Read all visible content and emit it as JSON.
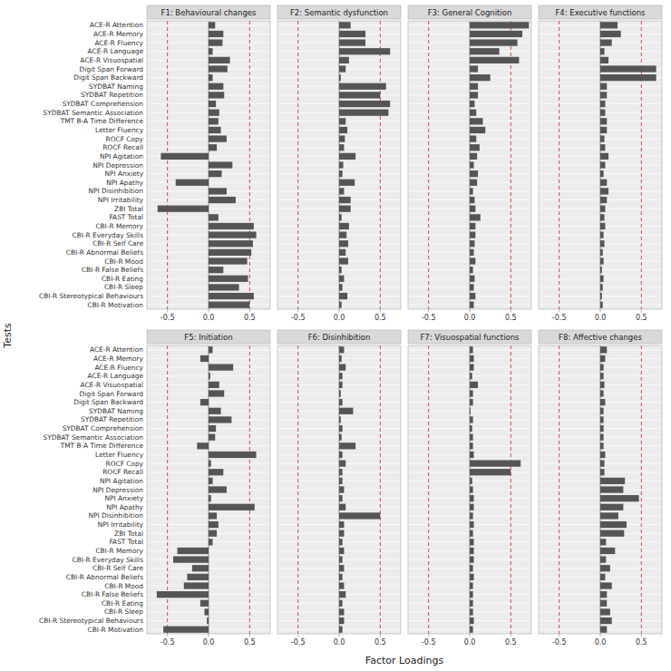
{
  "xlabel": "Factor Loadings",
  "ylabel": "Tests",
  "chart_data": [
    {
      "type": "bar",
      "orientation": "horizontal",
      "title": "F1: Behavioural changes",
      "color": "#555555",
      "grid": true,
      "categories": [
        "ACE-R Attention",
        "ACE-R Memory",
        "ACE-R Fluency",
        "ACE-R Language",
        "ACE-R Visuospatial",
        "Digit Span Forward",
        "Digit Span Backward",
        "SYDBAT Naming",
        "SYDBAT Repetition",
        "SYDBAT Comprehension",
        "SYDBAT Semantic Association",
        "TMT B-A Time Difference",
        "Letter Fluency",
        "ROCF Copy",
        "ROCF Recall",
        "NPI Agitation",
        "NPI Depression",
        "NPI Anxiety",
        "NPI Apathy",
        "NPI Disinhibition",
        "NPI Irritability",
        "ZBI Total",
        "FAST Total",
        "CBI-R Memory",
        "CBI-R Everyday Skills",
        "CBI-R Self Care",
        "CBI-R Abnormal Beliefs",
        "CBI-R Mood",
        "CBI-R False Beliefs",
        "CBI-R Eating",
        "CBI-R Sleep",
        "CBI-R Stereotypical Behaviours",
        "CBI-R Motivation"
      ],
      "values": [
        0.08,
        0.18,
        0.17,
        0.05,
        0.26,
        0.23,
        0.05,
        0.18,
        0.19,
        0.09,
        0.13,
        0.12,
        0.15,
        0.22,
        0.1,
        -0.58,
        0.29,
        0.16,
        -0.4,
        0.22,
        0.33,
        -0.62,
        0.12,
        0.55,
        0.58,
        0.54,
        0.52,
        0.47,
        0.18,
        0.48,
        0.37,
        0.55,
        0.5
      ],
      "xlim": [
        -0.75,
        0.75
      ],
      "xticks": [
        -0.5,
        {
          "value": 0.0,
          "label": "0.0"
        },
        0.5
      ],
      "reference_lines": [
        -0.5,
        0.5
      ]
    },
    {
      "type": "bar",
      "orientation": "horizontal",
      "title": "F2: Semantic dysfunction",
      "color": "#555555",
      "grid": true,
      "tick_labels": "x",
      "categories": [
        "ACE-R Attention",
        "ACE-R Memory",
        "ACE-R Fluency",
        "ACE-R Language",
        "ACE-R Visuospatial",
        "Digit Span Forward",
        "Digit Span Backward",
        "SYDBAT Naming",
        "SYDBAT Repetition",
        "SYDBAT Comprehension",
        "SYDBAT Semantic Association",
        "TMT B-A Time Difference",
        "Letter Fluency",
        "ROCF Copy",
        "ROCF Recall",
        "NPI Agitation",
        "NPI Depression",
        "NPI Anxiety",
        "NPI Apathy",
        "NPI Disinhibition",
        "NPI Irritability",
        "ZBI Total",
        "FAST Total",
        "CBI-R Memory",
        "CBI-R Everyday Skills",
        "CBI-R Self Care",
        "CBI-R Abnormal Beliefs",
        "CBI-R Mood",
        "CBI-R False Beliefs",
        "CBI-R Eating",
        "CBI-R Sleep",
        "CBI-R Stereotypical Behaviours",
        "CBI-R Motivation"
      ],
      "values": [
        0.14,
        0.32,
        0.32,
        0.62,
        0.12,
        0.08,
        0.02,
        0.57,
        0.5,
        0.62,
        0.6,
        0.08,
        0.1,
        0.07,
        0.06,
        0.2,
        0.05,
        0.04,
        0.19,
        0.06,
        0.14,
        0.14,
        0.03,
        0.12,
        0.09,
        0.11,
        0.08,
        0.11,
        0.03,
        0.06,
        0.04,
        0.1,
        0.03
      ],
      "xlim": [
        -0.75,
        0.75
      ],
      "xticks": [
        -0.5,
        {
          "value": 0.0,
          "label": "0.0"
        },
        0.5
      ],
      "reference_lines": [
        -0.5,
        0.5
      ]
    },
    {
      "type": "bar",
      "orientation": "horizontal",
      "title": "F3: General Cognition",
      "color": "#555555",
      "grid": true,
      "tick_labels": "x",
      "categories": [
        "ACE-R Attention",
        "ACE-R Memory",
        "ACE-R Fluency",
        "ACE-R Language",
        "ACE-R Visuospatial",
        "Digit Span Forward",
        "Digit Span Backward",
        "SYDBAT Naming",
        "SYDBAT Repetition",
        "SYDBAT Comprehension",
        "SYDBAT Semantic Association",
        "TMT B-A Time Difference",
        "Letter Fluency",
        "ROCF Copy",
        "ROCF Recall",
        "NPI Agitation",
        "NPI Depression",
        "NPI Anxiety",
        "NPI Apathy",
        "NPI Disinhibition",
        "NPI Irritability",
        "ZBI Total",
        "FAST Total",
        "CBI-R Memory",
        "CBI-R Everyday Skills",
        "CBI-R Self Care",
        "CBI-R Abnormal Beliefs",
        "CBI-R Mood",
        "CBI-R False Beliefs",
        "CBI-R Eating",
        "CBI-R Sleep",
        "CBI-R Stereotypical Behaviours",
        "CBI-R Motivation"
      ],
      "values": [
        0.72,
        0.64,
        0.58,
        0.36,
        0.6,
        0.1,
        0.25,
        0.1,
        0.1,
        0.06,
        0.08,
        0.16,
        0.19,
        0.08,
        0.12,
        0.09,
        0.05,
        0.1,
        0.09,
        0.04,
        0.06,
        0.07,
        0.13,
        0.07,
        0.07,
        0.06,
        0.05,
        0.07,
        0.04,
        0.06,
        0.05,
        0.07,
        0.05
      ],
      "xlim": [
        -0.75,
        0.75
      ],
      "xticks": [
        -0.5,
        {
          "value": 0.0,
          "label": "0.0"
        },
        0.5
      ],
      "reference_lines": [
        -0.5,
        0.5
      ]
    },
    {
      "type": "bar",
      "orientation": "horizontal",
      "title": "F4: Executive functions",
      "color": "#555555",
      "grid": true,
      "tick_labels": "x",
      "categories": [
        "ACE-R Attention",
        "ACE-R Memory",
        "ACE-R Fluency",
        "ACE-R Language",
        "ACE-R Visuospatial",
        "Digit Span Forward",
        "Digit Span Backward",
        "SYDBAT Naming",
        "SYDBAT Repetition",
        "SYDBAT Comprehension",
        "SYDBAT Semantic Association",
        "TMT B-A Time Difference",
        "Letter Fluency",
        "ROCF Copy",
        "ROCF Recall",
        "NPI Agitation",
        "NPI Depression",
        "NPI Anxiety",
        "NPI Apathy",
        "NPI Disinhibition",
        "NPI Irritability",
        "ZBI Total",
        "FAST Total",
        "CBI-R Memory",
        "CBI-R Everyday Skills",
        "CBI-R Self Care",
        "CBI-R Abnormal Beliefs",
        "CBI-R Mood",
        "CBI-R False Beliefs",
        "CBI-R Eating",
        "CBI-R Sleep",
        "CBI-R Stereotypical Behaviours",
        "CBI-R Motivation"
      ],
      "values": [
        0.21,
        0.25,
        0.14,
        0.05,
        0.1,
        0.68,
        0.68,
        0.08,
        0.08,
        0.06,
        0.06,
        0.08,
        0.08,
        0.05,
        0.06,
        0.1,
        0.06,
        0.04,
        0.08,
        0.1,
        0.08,
        0.06,
        0.05,
        0.06,
        0.04,
        0.05,
        0.03,
        0.04,
        0.02,
        0.04,
        0.03,
        0.02,
        0.03
      ],
      "xlim": [
        -0.75,
        0.75
      ],
      "xticks": [
        -0.5,
        {
          "value": 0.0,
          "label": "0.0"
        },
        0.5
      ],
      "reference_lines": [
        -0.5,
        0.5
      ]
    },
    {
      "type": "bar",
      "orientation": "horizontal",
      "title": "F5: Initiation",
      "color": "#555555",
      "grid": true,
      "categories": [
        "ACE-R Attention",
        "ACE-R Memory",
        "ACE-R Fluency",
        "ACE-R Language",
        "ACE-R Visuospatial",
        "Digit Span Forward",
        "Digit Span Backward",
        "SYDBAT Naming",
        "SYDBAT Repetition",
        "SYDBAT Comprehension",
        "SYDBAT Semantic Association",
        "TMT B-A Time Difference",
        "Letter Fluency",
        "ROCF Copy",
        "ROCF Recall",
        "NPI Agitation",
        "NPI Depression",
        "NPI Anxiety",
        "NPI Apathy",
        "NPI Disinhibition",
        "NPI Irritability",
        "ZBI Total",
        "FAST Total",
        "CBI-R Memory",
        "CBI-R Everyday Skills",
        "CBI-R Self Care",
        "CBI-R Abnormal Beliefs",
        "CBI-R Mood",
        "CBI-R False Beliefs",
        "CBI-R Eating",
        "CBI-R Sleep",
        "CBI-R Stereotypical Behaviours",
        "CBI-R Motivation"
      ],
      "values": [
        0.05,
        -0.1,
        0.3,
        0.02,
        0.13,
        0.19,
        -0.1,
        0.15,
        0.28,
        0.09,
        0.08,
        -0.14,
        0.58,
        0.03,
        0.18,
        0.05,
        0.22,
        0.03,
        0.56,
        0.1,
        0.12,
        0.1,
        0.05,
        -0.38,
        -0.43,
        -0.2,
        -0.26,
        -0.3,
        -0.63,
        -0.1,
        -0.05,
        -0.02,
        -0.55
      ],
      "xlim": [
        -0.75,
        0.75
      ],
      "xticks": [
        -0.5,
        {
          "value": 0.0,
          "label": "0.0"
        },
        0.5
      ],
      "reference_lines": [
        -0.5,
        0.5
      ]
    },
    {
      "type": "bar",
      "orientation": "horizontal",
      "title": "F6: Disinhibition",
      "color": "#555555",
      "grid": true,
      "tick_labels": "x",
      "categories": [
        "ACE-R Attention",
        "ACE-R Memory",
        "ACE-R Fluency",
        "ACE-R Language",
        "ACE-R Visuospatial",
        "Digit Span Forward",
        "Digit Span Backward",
        "SYDBAT Naming",
        "SYDBAT Repetition",
        "SYDBAT Comprehension",
        "SYDBAT Semantic Association",
        "TMT B-A Time Difference",
        "Letter Fluency",
        "ROCF Copy",
        "ROCF Recall",
        "NPI Agitation",
        "NPI Depression",
        "NPI Anxiety",
        "NPI Apathy",
        "NPI Disinhibition",
        "NPI Irritability",
        "ZBI Total",
        "FAST Total",
        "CBI-R Memory",
        "CBI-R Everyday Skills",
        "CBI-R Self Care",
        "CBI-R Abnormal Beliefs",
        "CBI-R Mood",
        "CBI-R False Beliefs",
        "CBI-R Eating",
        "CBI-R Sleep",
        "CBI-R Stereotypical Behaviours",
        "CBI-R Motivation"
      ],
      "values": [
        0.06,
        0.03,
        0.08,
        0.04,
        0.04,
        0.02,
        0.04,
        0.17,
        0.02,
        0.04,
        0.03,
        0.2,
        0.04,
        0.08,
        0.04,
        0.04,
        0.06,
        0.04,
        0.08,
        0.5,
        0.06,
        0.06,
        0.04,
        0.06,
        0.04,
        0.06,
        0.04,
        0.06,
        0.08,
        0.04,
        0.06,
        0.06,
        0.04
      ],
      "xlim": [
        -0.75,
        0.75
      ],
      "xticks": [
        -0.5,
        {
          "value": 0.0,
          "label": "0.0"
        },
        0.5
      ],
      "reference_lines": [
        -0.5,
        0.5
      ]
    },
    {
      "type": "bar",
      "orientation": "horizontal",
      "title": "F7: Visuospatial functions",
      "color": "#555555",
      "grid": true,
      "tick_labels": "x",
      "categories": [
        "ACE-R Attention",
        "ACE-R Memory",
        "ACE-R Fluency",
        "ACE-R Language",
        "ACE-R Visuospatial",
        "Digit Span Forward",
        "Digit Span Backward",
        "SYDBAT Naming",
        "SYDBAT Repetition",
        "SYDBAT Comprehension",
        "SYDBAT Semantic Association",
        "TMT B-A Time Difference",
        "Letter Fluency",
        "ROCF Copy",
        "ROCF Recall",
        "NPI Agitation",
        "NPI Depression",
        "NPI Anxiety",
        "NPI Apathy",
        "NPI Disinhibition",
        "NPI Irritability",
        "ZBI Total",
        "FAST Total",
        "CBI-R Memory",
        "CBI-R Everyday Skills",
        "CBI-R Self Care",
        "CBI-R Abnormal Beliefs",
        "CBI-R Mood",
        "CBI-R False Beliefs",
        "CBI-R Eating",
        "CBI-R Sleep",
        "CBI-R Stereotypical Behaviours",
        "CBI-R Motivation"
      ],
      "values": [
        0.04,
        0.05,
        0.05,
        0.03,
        0.1,
        0.04,
        0.04,
        0.01,
        0.04,
        0.03,
        0.04,
        0.04,
        0.05,
        0.62,
        0.5,
        0.03,
        0.04,
        0.05,
        0.05,
        0.04,
        0.05,
        0.04,
        0.05,
        0.05,
        0.05,
        0.04,
        0.05,
        0.04,
        0.04,
        0.04,
        0.04,
        0.05,
        0.04
      ],
      "xlim": [
        -0.75,
        0.75
      ],
      "xticks": [
        -0.5,
        {
          "value": 0.0,
          "label": "0.0"
        },
        0.5
      ],
      "reference_lines": [
        -0.5,
        0.5
      ]
    },
    {
      "type": "bar",
      "orientation": "horizontal",
      "title": "F8: Affective changes",
      "color": "#555555",
      "grid": true,
      "tick_labels": "x",
      "categories": [
        "ACE-R Attention",
        "ACE-R Memory",
        "ACE-R Fluency",
        "ACE-R Language",
        "ACE-R Visuospatial",
        "Digit Span Forward",
        "Digit Span Backward",
        "SYDBAT Naming",
        "SYDBAT Repetition",
        "SYDBAT Comprehension",
        "SYDBAT Semantic Association",
        "TMT B-A Time Difference",
        "Letter Fluency",
        "ROCF Copy",
        "ROCF Recall",
        "NPI Agitation",
        "NPI Depression",
        "NPI Anxiety",
        "NPI Apathy",
        "NPI Disinhibition",
        "NPI Irritability",
        "ZBI Total",
        "FAST Total",
        "CBI-R Memory",
        "CBI-R Everyday Skills",
        "CBI-R Self Care",
        "CBI-R Abnormal Beliefs",
        "CBI-R Mood",
        "CBI-R False Beliefs",
        "CBI-R Eating",
        "CBI-R Sleep",
        "CBI-R Stereotypical Behaviours",
        "CBI-R Motivation"
      ],
      "values": [
        0.08,
        0.06,
        0.04,
        0.04,
        0.05,
        0.04,
        0.06,
        0.04,
        0.04,
        0.04,
        0.04,
        0.04,
        0.06,
        0.05,
        0.05,
        0.3,
        0.28,
        0.47,
        0.28,
        0.22,
        0.32,
        0.29,
        0.07,
        0.18,
        0.07,
        0.12,
        0.06,
        0.14,
        0.08,
        0.08,
        0.12,
        0.14,
        0.08
      ],
      "xlim": [
        -0.75,
        0.75
      ],
      "xticks": [
        -0.5,
        {
          "value": 0.0,
          "label": "0.0"
        },
        0.5
      ],
      "reference_lines": [
        -0.5,
        0.5
      ]
    }
  ]
}
